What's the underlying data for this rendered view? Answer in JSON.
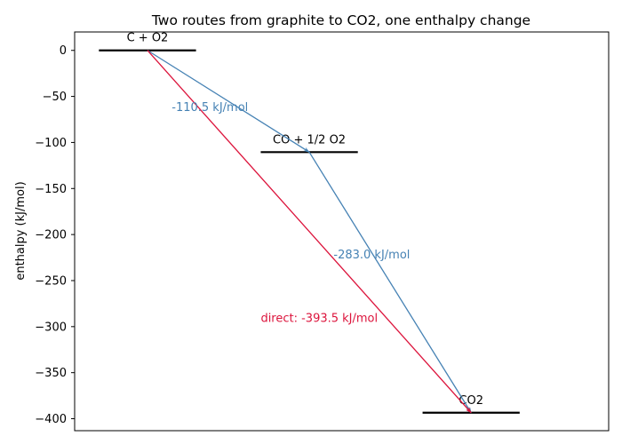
{
  "chart_data": {
    "type": "line",
    "title": "Two routes from graphite to CO2, one enthalpy change",
    "xlabel": "",
    "ylabel": "enthalpy (kJ/mol)",
    "ylim": [
      -413,
      20
    ],
    "xlim": [
      0,
      3.3
    ],
    "yticks": [
      0,
      -50,
      -100,
      -150,
      -200,
      -250,
      -300,
      -350,
      -400
    ],
    "grid": false,
    "levels": [
      {
        "label": "C + O2",
        "energy": 0,
        "x_start": 0.15,
        "x_end": 0.75
      },
      {
        "label": "CO + 1/2 O2",
        "energy": -110.5,
        "x_start": 1.15,
        "x_end": 1.75
      },
      {
        "label": "CO2",
        "energy": -393.5,
        "x_start": 2.15,
        "x_end": 2.75
      }
    ],
    "arrows": [
      {
        "from": [
          0.45,
          0
        ],
        "to": [
          1.45,
          -110.5
        ],
        "label": "-110.5 kJ/mol",
        "label_at": [
          0.6,
          -66
        ],
        "color": "#4682b4"
      },
      {
        "from": [
          1.45,
          -110.5
        ],
        "to": [
          2.45,
          -393.5
        ],
        "label": "-283.0 kJ/mol",
        "label_at": [
          1.6,
          -226
        ],
        "color": "#4682b4"
      },
      {
        "from": [
          0.45,
          0
        ],
        "to": [
          2.45,
          -393.5
        ],
        "label": "direct: -393.5 kJ/mol",
        "label_at": [
          1.15,
          -295
        ],
        "color": "#dc143c"
      }
    ]
  }
}
